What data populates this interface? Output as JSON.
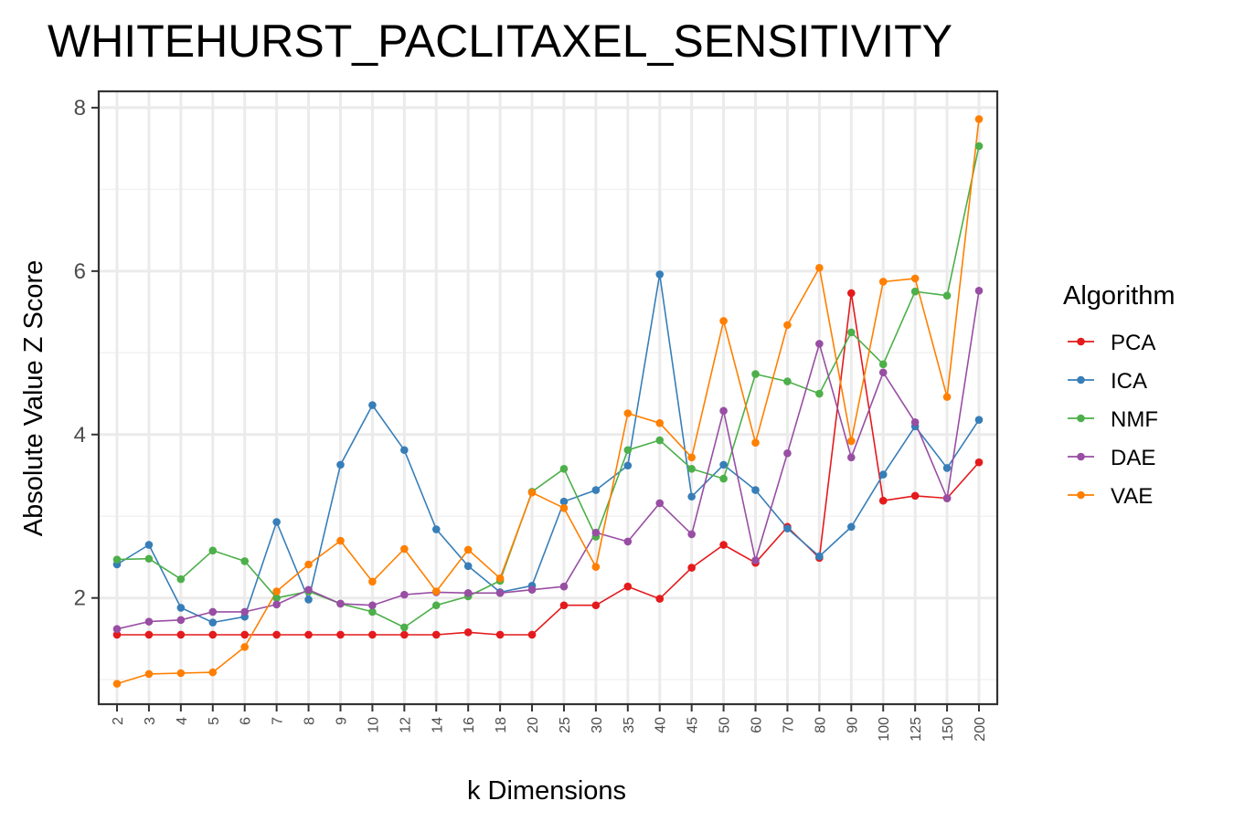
{
  "chart_data": {
    "type": "line",
    "title": "WHITEHURST_PACLITAXEL_SENSITIVITY",
    "xlabel": "k Dimensions",
    "ylabel": "Absolute Value Z Score",
    "categories": [
      "2",
      "3",
      "4",
      "5",
      "6",
      "7",
      "8",
      "9",
      "10",
      "12",
      "14",
      "16",
      "18",
      "20",
      "25",
      "30",
      "35",
      "40",
      "45",
      "50",
      "60",
      "70",
      "80",
      "90",
      "100",
      "125",
      "150",
      "200"
    ],
    "ylim": [
      0.7,
      8.2
    ],
    "yticks": [
      2,
      4,
      6,
      8
    ],
    "grid": true,
    "legend": {
      "title": "Algorithm",
      "position": "right"
    },
    "series": [
      {
        "name": "PCA",
        "color": "#e41a1c",
        "values": [
          1.55,
          1.55,
          1.55,
          1.55,
          1.55,
          1.55,
          1.55,
          1.55,
          1.55,
          1.55,
          1.55,
          1.58,
          1.55,
          1.55,
          1.91,
          1.91,
          2.14,
          1.99,
          2.37,
          2.65,
          2.43,
          2.87,
          2.49,
          5.73,
          3.19,
          3.25,
          3.22,
          3.66
        ]
      },
      {
        "name": "ICA",
        "color": "#377eb8",
        "values": [
          2.41,
          2.65,
          1.88,
          1.7,
          1.77,
          2.93,
          1.98,
          3.63,
          4.36,
          3.81,
          2.84,
          2.39,
          2.07,
          2.15,
          3.18,
          3.32,
          3.62,
          5.96,
          3.24,
          3.63,
          3.32,
          2.85,
          2.51,
          2.87,
          3.51,
          4.1,
          3.59,
          4.18
        ]
      },
      {
        "name": "NMF",
        "color": "#4daf4a",
        "values": [
          2.47,
          2.48,
          2.23,
          2.58,
          2.45,
          2.0,
          2.08,
          1.93,
          1.83,
          1.64,
          1.91,
          2.02,
          2.21,
          3.3,
          3.58,
          2.75,
          3.81,
          3.93,
          3.58,
          3.46,
          4.74,
          4.65,
          4.5,
          5.25,
          4.86,
          5.75,
          5.7,
          7.53
        ]
      },
      {
        "name": "DAE",
        "color": "#984ea3",
        "values": [
          1.62,
          1.71,
          1.73,
          1.83,
          1.83,
          1.92,
          2.1,
          1.93,
          1.91,
          2.04,
          2.07,
          2.06,
          2.06,
          2.1,
          2.14,
          2.8,
          2.69,
          3.16,
          2.78,
          4.29,
          2.46,
          3.77,
          5.11,
          3.72,
          4.76,
          4.15,
          3.22,
          5.76
        ]
      },
      {
        "name": "VAE",
        "color": "#ff7f00",
        "values": [
          0.95,
          1.07,
          1.08,
          1.09,
          1.4,
          2.08,
          2.41,
          2.7,
          2.2,
          2.6,
          2.08,
          2.59,
          2.24,
          3.29,
          3.1,
          2.38,
          4.26,
          4.14,
          3.72,
          5.39,
          3.9,
          5.34,
          6.04,
          3.92,
          5.87,
          5.91,
          4.46,
          7.86
        ]
      }
    ]
  }
}
